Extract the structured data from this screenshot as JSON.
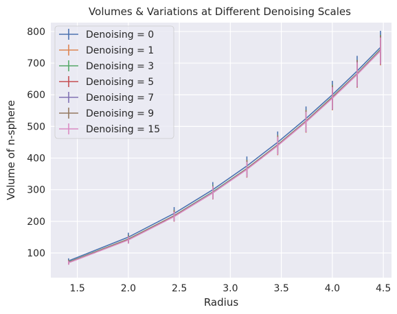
{
  "chart_data": {
    "type": "line",
    "title": "Volumes & Variations at Different Denoising Scales",
    "xlabel": "Radius",
    "ylabel": "Volume of n-sphere",
    "xlim": [
      1.24,
      4.58
    ],
    "ylim": [
      22,
      828
    ],
    "xticks": [
      1.5,
      2.0,
      2.5,
      3.0,
      3.5,
      4.0,
      4.5
    ],
    "yticks": [
      100,
      200,
      300,
      400,
      500,
      600,
      700,
      800
    ],
    "grid": true,
    "legend_position": "upper-left",
    "x": [
      1.414,
      2.0,
      2.449,
      2.828,
      3.162,
      3.464,
      3.742,
      4.0,
      4.243,
      4.472
    ],
    "series": [
      {
        "name": "Denoising = 0",
        "color": "#4c72b0",
        "values": [
          75,
          150,
          225,
          300,
          375,
          450,
          525,
          600,
          675,
          750
        ],
        "err": [
          8,
          14,
          20,
          24,
          30,
          34,
          38,
          44,
          48,
          52
        ]
      },
      {
        "name": "Denoising = 1",
        "color": "#dd8452",
        "values": [
          71,
          143,
          217,
          292,
          366,
          441,
          516,
          591,
          666,
          741
        ],
        "err": [
          7,
          13,
          18,
          23,
          28,
          32,
          36,
          40,
          44,
          48
        ]
      },
      {
        "name": "Denoising = 3",
        "color": "#55a868",
        "values": [
          71,
          144,
          218,
          293,
          367,
          442,
          517,
          593,
          667,
          743
        ],
        "err": [
          7,
          13,
          18,
          22,
          27,
          31,
          35,
          39,
          43,
          46
        ]
      },
      {
        "name": "Denoising = 5",
        "color": "#c44e52",
        "values": [
          70,
          143,
          217,
          291,
          366,
          441,
          516,
          591,
          666,
          741
        ],
        "err": [
          7,
          12,
          17,
          21,
          26,
          30,
          34,
          38,
          42,
          45
        ]
      },
      {
        "name": "Denoising = 7",
        "color": "#8172b3",
        "values": [
          70,
          142,
          216,
          291,
          365,
          440,
          515,
          590,
          665,
          740
        ],
        "err": [
          6,
          12,
          16,
          21,
          25,
          29,
          33,
          37,
          41,
          44
        ]
      },
      {
        "name": "Denoising = 9",
        "color": "#937860",
        "values": [
          70,
          142,
          216,
          290,
          365,
          440,
          515,
          590,
          665,
          740
        ],
        "err": [
          6,
          11,
          16,
          20,
          25,
          29,
          33,
          36,
          40,
          43
        ]
      },
      {
        "name": "Denoising = 15",
        "color": "#da8bc3",
        "values": [
          69,
          141,
          215,
          290,
          364,
          439,
          514,
          589,
          664,
          739
        ],
        "err": [
          6,
          11,
          15,
          20,
          24,
          28,
          32,
          35,
          39,
          42
        ]
      }
    ]
  }
}
